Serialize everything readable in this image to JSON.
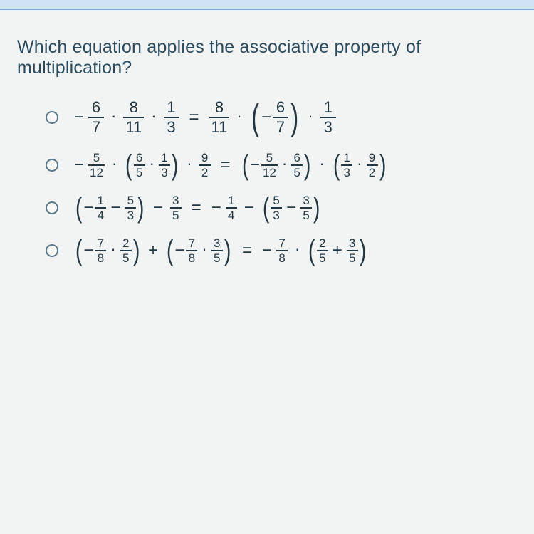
{
  "colors": {
    "page_bg": "#f2f4f3",
    "topbar_bg": "#cfe3f5",
    "topbar_border": "#7aa6cf",
    "text": "#2a4b5f",
    "math": "#233742",
    "radio_border": "#5a7a8b"
  },
  "question": "Which equation applies the associative property of multiplication?",
  "options": [
    {
      "id": "opt1",
      "display_style": "big",
      "latex": "−6/7 · 8/11 · 1/3 = 8/11 · (−6/7) · 1/3",
      "lhs": {
        "terms": [
          "−6/7",
          "·",
          "8/11",
          "·",
          "1/3"
        ]
      },
      "rhs": {
        "terms": [
          "8/11",
          "·",
          "(−6/7)",
          "·",
          "1/3"
        ]
      }
    },
    {
      "id": "opt2",
      "display_style": "small",
      "latex": "−5/12 · (6/5 · 1/3) · 9/2 = (−5/12 · 6/5) · (1/3 · 9/2)",
      "lhs": {
        "terms": [
          "−5/12",
          "·",
          "(6/5 · 1/3)",
          "·",
          "9/2"
        ]
      },
      "rhs": {
        "terms": [
          "(−5/12 · 6/5)",
          "·",
          "(1/3 · 9/2)"
        ]
      }
    },
    {
      "id": "opt3",
      "display_style": "small",
      "latex": "(−1/4 − 5/3) − 3/5 = −1/4 − (5/3 − 3/5)",
      "lhs": {
        "terms": [
          "(−1/4 − 5/3)",
          "−",
          "3/5"
        ]
      },
      "rhs": {
        "terms": [
          "−1/4",
          "−",
          "(5/3 − 3/5)"
        ]
      }
    },
    {
      "id": "opt4",
      "display_style": "small",
      "latex": "(−7/8 · 2/5) + (−7/8 · 3/5) = −7/8 · (2/5 + 3/5)",
      "lhs": {
        "terms": [
          "(−7/8 · 2/5)",
          "+",
          "(−7/8 · 3/5)"
        ]
      },
      "rhs": {
        "terms": [
          "−7/8",
          "·",
          "(2/5 + 3/5)"
        ]
      }
    }
  ]
}
